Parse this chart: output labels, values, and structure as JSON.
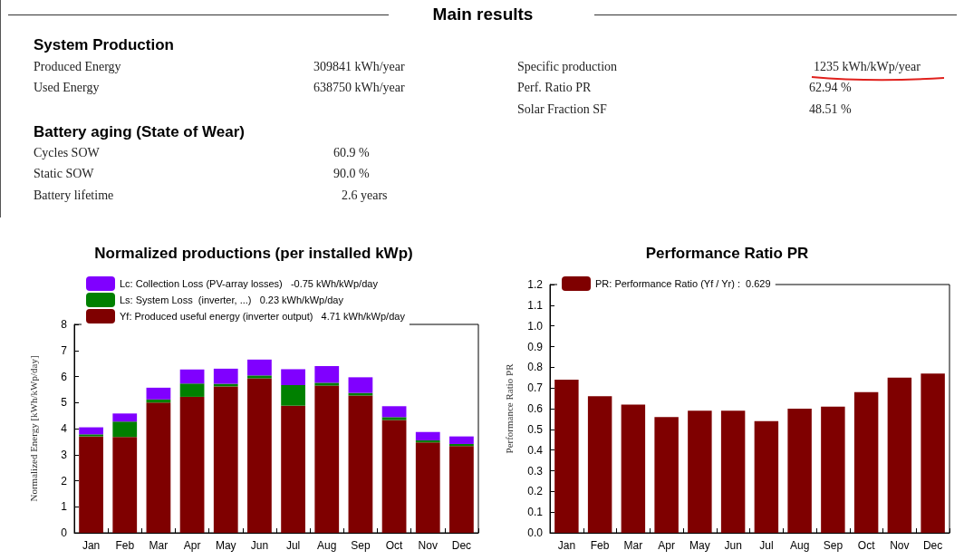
{
  "chart_data": [
    {
      "type": "other",
      "title": "Main results",
      "annotations": [
        "System Production",
        "Produced  Energy",
        "309841 kWh/year",
        "Specific production",
        "1235 kWh/kWp/year",
        "Used  Energy",
        "638750 kWh/year",
        "Perf. Ratio PR",
        "62.94 %",
        "Solar Fraction SF",
        "48.51 %",
        "Battery aging (State of Wear)",
        "Cycles  SOW",
        "60.9 %",
        "Static  SOW",
        "90.0 %",
        "Battery lifetime",
        "2.6 years"
      ]
    },
    {
      "type": "bar",
      "stacked": true,
      "title": "Normalized productions (per installed kWp)",
      "ylabel": "Normalized Energy [kWh/kWp/day]",
      "categories": [
        "Jan",
        "Feb",
        "Mar",
        "Apr",
        "May",
        "Jun",
        "Jul",
        "Aug",
        "Sep",
        "Oct",
        "Nov",
        "Dec"
      ],
      "series": [
        {
          "name": "Yf: Produced useful energy (inverter output)   4.71 kWh/kWp/day",
          "color": "#7f0000",
          "values": [
            3.7,
            3.68,
            5.0,
            5.22,
            5.62,
            5.93,
            4.88,
            5.65,
            5.27,
            4.33,
            3.47,
            3.33
          ]
        },
        {
          "name": "Ls: System Loss  (inverter, ...)   0.23 kWh/kWp/day",
          "color": "#008000",
          "values": [
            0.08,
            0.59,
            0.12,
            0.51,
            0.1,
            0.11,
            0.79,
            0.11,
            0.1,
            0.11,
            0.08,
            0.08
          ]
        },
        {
          "name": "Lc: Collection Loss (PV-array losses)   -0.75 kWh/kWp/day",
          "color": "#8000ff",
          "values": [
            0.27,
            0.31,
            0.45,
            0.54,
            0.58,
            0.61,
            0.61,
            0.64,
            0.6,
            0.42,
            0.32,
            0.29
          ]
        }
      ],
      "ylim": [
        0,
        8
      ],
      "yticks": [
        0,
        1,
        2,
        3,
        4,
        5,
        6,
        7,
        8
      ],
      "grid": false,
      "legend": "top left"
    },
    {
      "type": "bar",
      "title": "Performance Ratio PR",
      "ylabel": "Performance Ratio PR",
      "categories": [
        "Jan",
        "Feb",
        "Mar",
        "Apr",
        "May",
        "Jun",
        "Jul",
        "Aug",
        "Sep",
        "Oct",
        "Nov",
        "Dec"
      ],
      "series": [
        {
          "name": "PR: Performance Ratio (Yf / Yr) :  0.629",
          "color": "#7f0000",
          "values": [
            0.74,
            0.66,
            0.62,
            0.56,
            0.59,
            0.59,
            0.54,
            0.6,
            0.61,
            0.68,
            0.75,
            0.77
          ]
        }
      ],
      "ylim": [
        0,
        1.2
      ],
      "yticks": [
        {
          "value": 0,
          "label": "0.0"
        },
        0.1,
        0.2,
        0.3,
        0.4,
        0.5,
        0.6,
        0.7,
        0.8,
        0.9,
        {
          "value": 1,
          "label": "1.0"
        },
        1.1,
        1.2
      ],
      "grid": false,
      "legend": "top left"
    }
  ]
}
